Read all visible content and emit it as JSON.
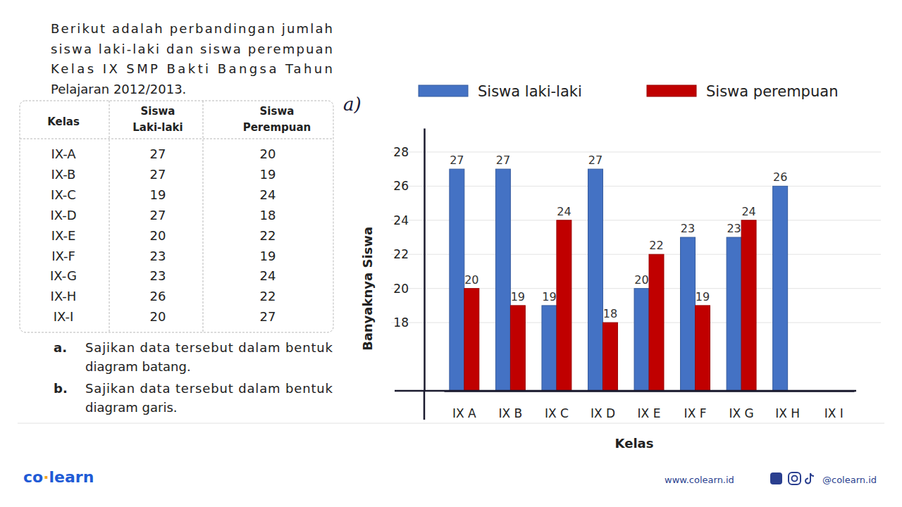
{
  "problem": {
    "intro_lines": [
      "Berikut adalah perbandingan jumlah",
      "siswa laki-laki dan siswa perempuan",
      "Kelas IX SMP Bakti Bangsa Tahun",
      "Pelajaran 2012/2013."
    ],
    "table": {
      "header": [
        [
          "Kelas"
        ],
        [
          "Siswa",
          "Laki-laki"
        ],
        [
          "Siswa",
          "Perempuan"
        ]
      ],
      "rows": [
        [
          "IX-A",
          27,
          20
        ],
        [
          "IX-B",
          27,
          19
        ],
        [
          "IX-C",
          19,
          24
        ],
        [
          "IX-D",
          27,
          18
        ],
        [
          "IX-E",
          20,
          22
        ],
        [
          "IX-F",
          23,
          19
        ],
        [
          "IX-G",
          23,
          24
        ],
        [
          "IX-H",
          26,
          22
        ],
        [
          "IX-I",
          20,
          27
        ]
      ]
    },
    "questions": [
      {
        "label": "a.",
        "lines": [
          "Sajikan data tersebut dalam bentuk",
          "diagram batang."
        ]
      },
      {
        "label": "b.",
        "lines": [
          "Sajikan data tersebut dalam bentuk",
          "diagram garis."
        ]
      }
    ]
  },
  "footer": {
    "brand": "co·learn",
    "website": "www.colearn.id",
    "social": "@colearn.id"
  },
  "chart_data": {
    "type": "bar",
    "annotations": [
      "a)"
    ],
    "x_label": "Kelas",
    "y_label": "Banyaknya Siswa",
    "categories": [
      "IX A",
      "IX B",
      "IX C",
      "IX D",
      "IX E",
      "IX F",
      "IX G",
      "IX H",
      "IX I"
    ],
    "series": [
      {
        "name": "Siswa laki-laki",
        "color": "#4472c4",
        "values": [
          27,
          27,
          19,
          27,
          20,
          23,
          23,
          26,
          null
        ]
      },
      {
        "name": "Siswa perempuan",
        "color": "#c00000",
        "values": [
          20,
          19,
          24,
          18,
          22,
          19,
          24,
          null,
          null
        ]
      }
    ],
    "ylim": [
      14,
      29.4
    ],
    "yticks": [
      18,
      20,
      22,
      24,
      26,
      28
    ],
    "grid": true,
    "legend": "top",
    "data_labels": true
  }
}
